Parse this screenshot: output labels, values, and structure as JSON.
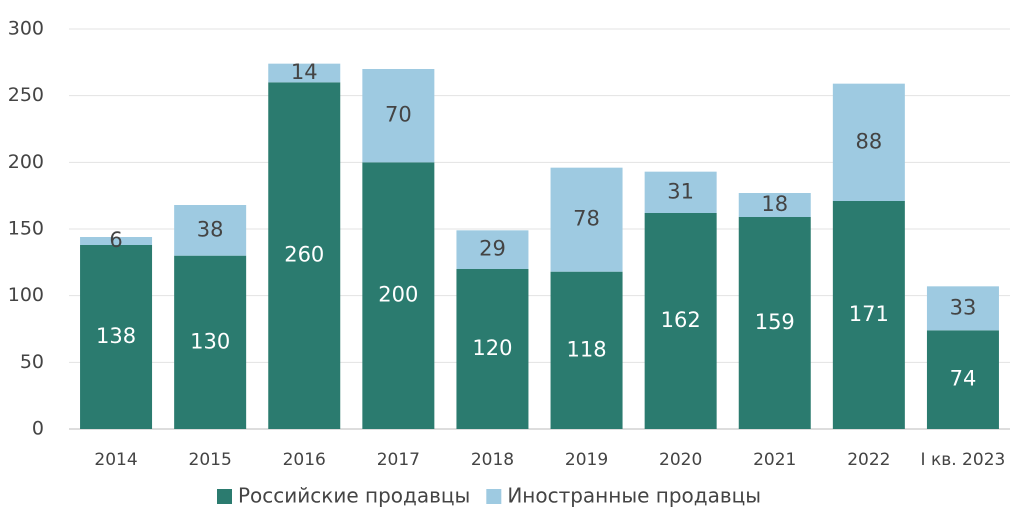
{
  "chart_data": {
    "type": "stacked_bar",
    "categories": [
      "2014",
      "2015",
      "2016",
      "2017",
      "2018",
      "2019",
      "2020",
      "2021",
      "2022",
      "I кв. 2023"
    ],
    "series": [
      {
        "name": "Российские продавцы",
        "color": "#2b7b6f",
        "values": [
          138,
          130,
          260,
          200,
          120,
          118,
          162,
          159,
          171,
          74
        ]
      },
      {
        "name": "Иностранные продавцы",
        "color": "#9ecae1",
        "values": [
          6,
          38,
          14,
          70,
          29,
          78,
          31,
          18,
          88,
          33
        ]
      }
    ],
    "ylim": [
      0,
      300
    ],
    "yticks": [
      0,
      50,
      100,
      150,
      200,
      250,
      300
    ],
    "grid": true,
    "legend": "bottom"
  }
}
